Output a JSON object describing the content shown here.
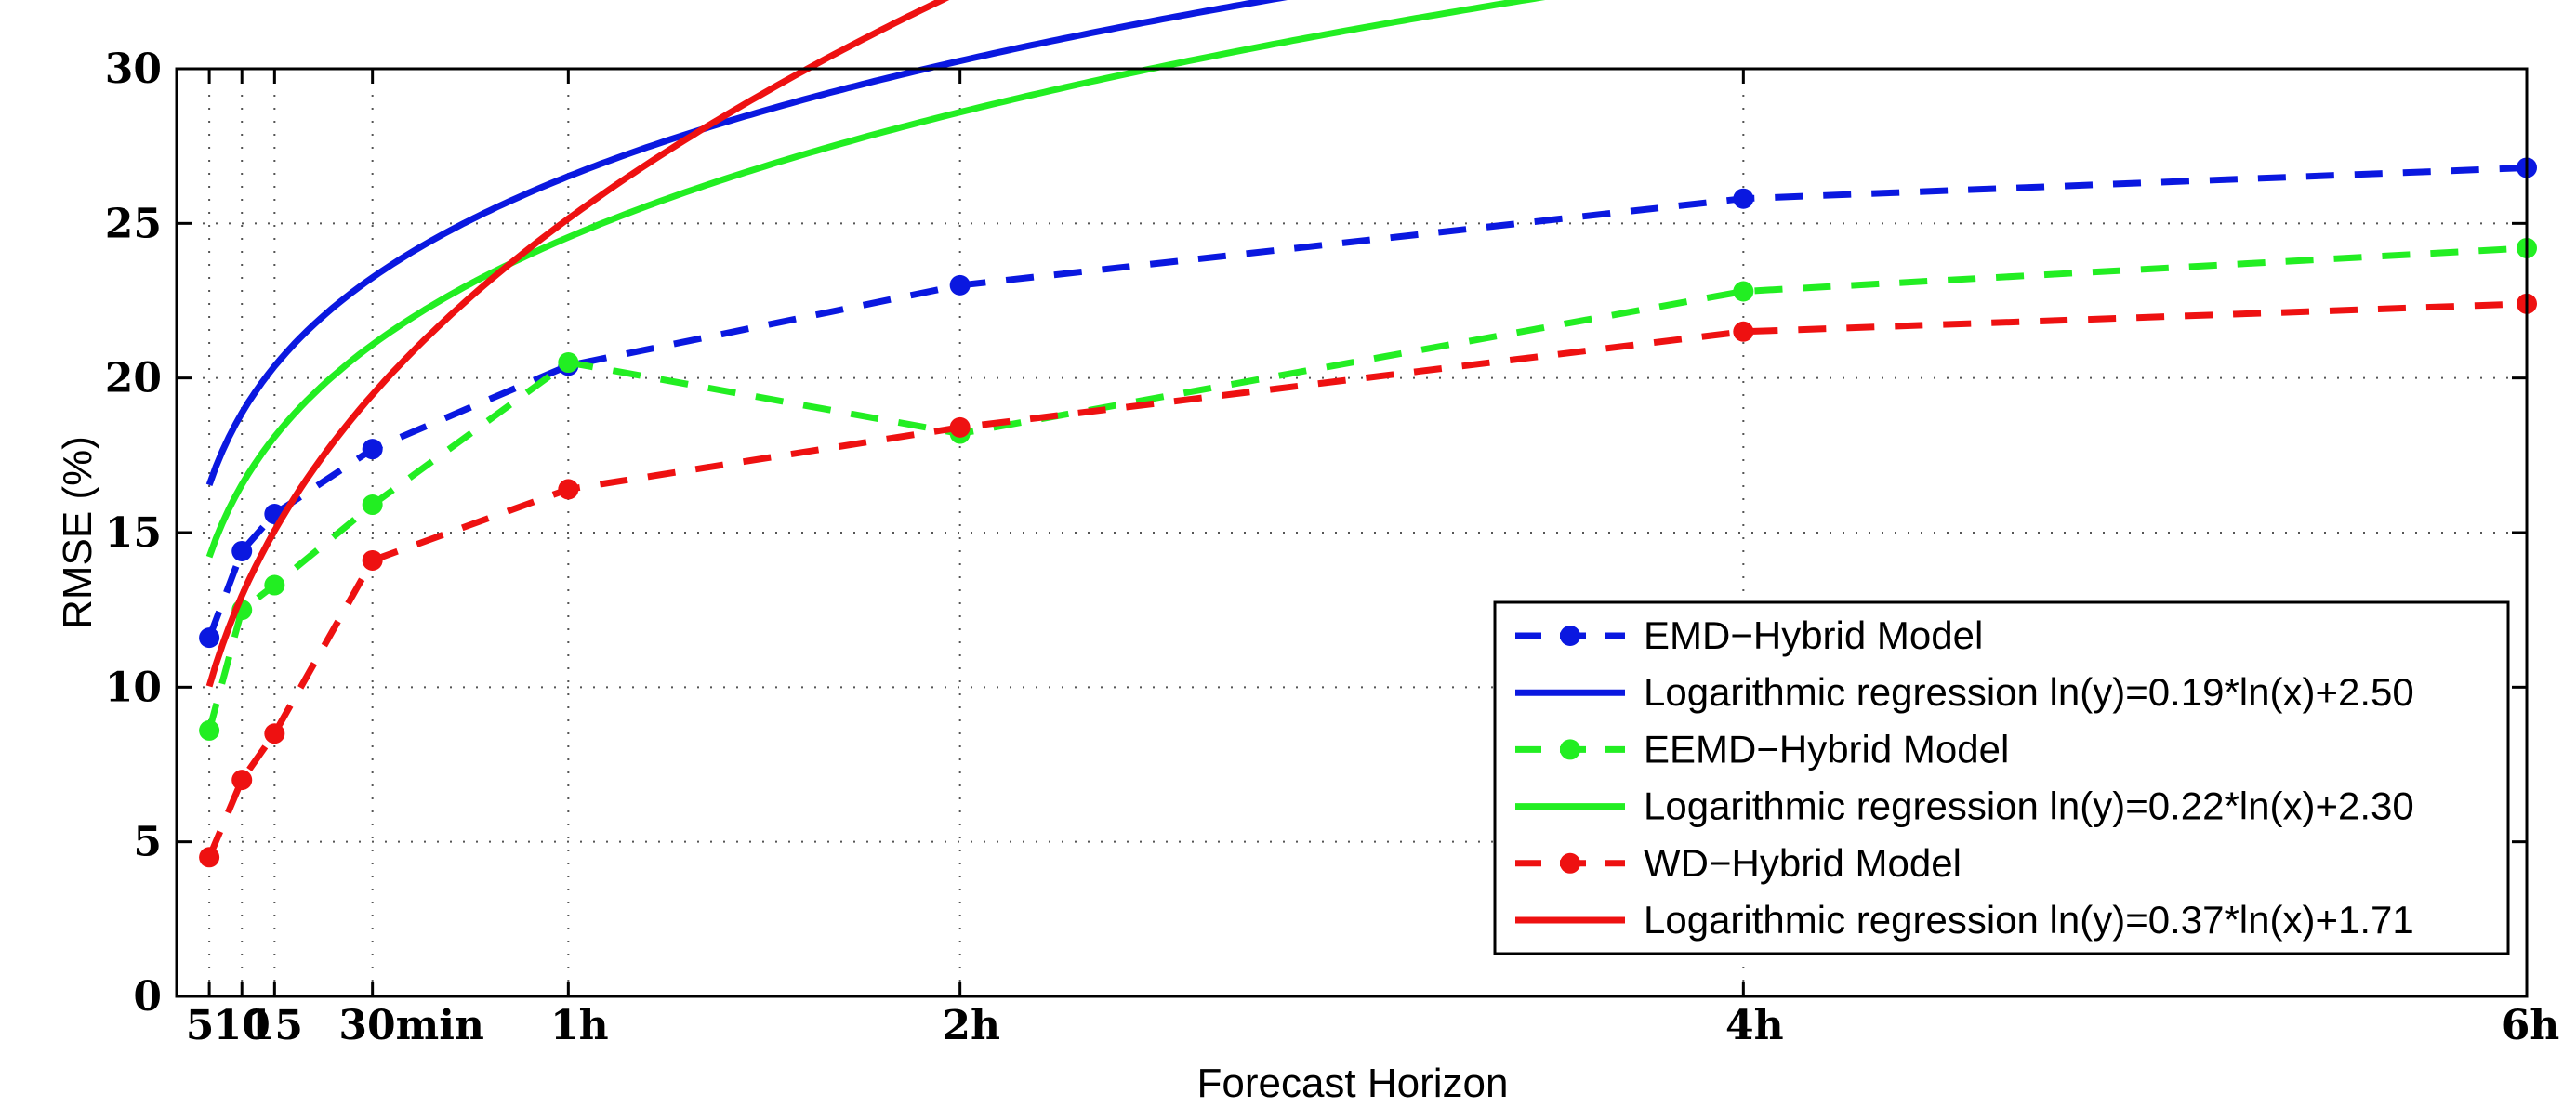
{
  "chart_data": {
    "type": "line",
    "title": "",
    "xlabel": "Forecast Horizon",
    "ylabel": "RMSE (%)",
    "xlim": [
      0,
      360
    ],
    "ylim": [
      0,
      30
    ],
    "grid": true,
    "legend_position": "bottom-right",
    "x_ticks": [
      {
        "value": 5,
        "label": "5"
      },
      {
        "value": 10,
        "label": "10"
      },
      {
        "value": 15,
        "label": "15"
      },
      {
        "value": 30,
        "label": "30min"
      },
      {
        "value": 60,
        "label": "1h"
      },
      {
        "value": 120,
        "label": "2h"
      },
      {
        "value": 240,
        "label": "4h"
      },
      {
        "value": 360,
        "label": "6h"
      }
    ],
    "y_ticks": [
      0,
      5,
      10,
      15,
      20,
      25,
      30
    ],
    "x": [
      5,
      10,
      15,
      30,
      60,
      120,
      240,
      360
    ],
    "series": [
      {
        "name": "EMD−Hybrid Model",
        "kind": "data",
        "color": "#0a18e0",
        "values": [
          11.6,
          14.4,
          15.6,
          17.7,
          20.4,
          23.0,
          25.8,
          26.8
        ]
      },
      {
        "name": "Logarithmic regression ln(y)=0.19*ln(x)+2.50",
        "kind": "fit",
        "color": "#0a18e0",
        "a": 0.19,
        "b": 2.5
      },
      {
        "name": "EEMD−Hybrid Model",
        "kind": "data",
        "color": "#22ee22",
        "values": [
          8.6,
          12.5,
          13.3,
          15.9,
          20.5,
          18.2,
          22.8,
          24.2
        ]
      },
      {
        "name": "Logarithmic regression ln(y)=0.22*ln(x)+2.30",
        "kind": "fit",
        "color": "#22ee22",
        "a": 0.22,
        "b": 2.3
      },
      {
        "name": "WD−Hybrid Model",
        "kind": "data",
        "color": "#ee1111",
        "values": [
          4.5,
          7.0,
          8.5,
          14.1,
          16.4,
          18.4,
          21.5,
          22.4
        ]
      },
      {
        "name": "Logarithmic regression ln(y)=0.37*ln(x)+1.71",
        "kind": "fit",
        "color": "#ee1111",
        "a": 0.37,
        "b": 1.71
      }
    ]
  }
}
